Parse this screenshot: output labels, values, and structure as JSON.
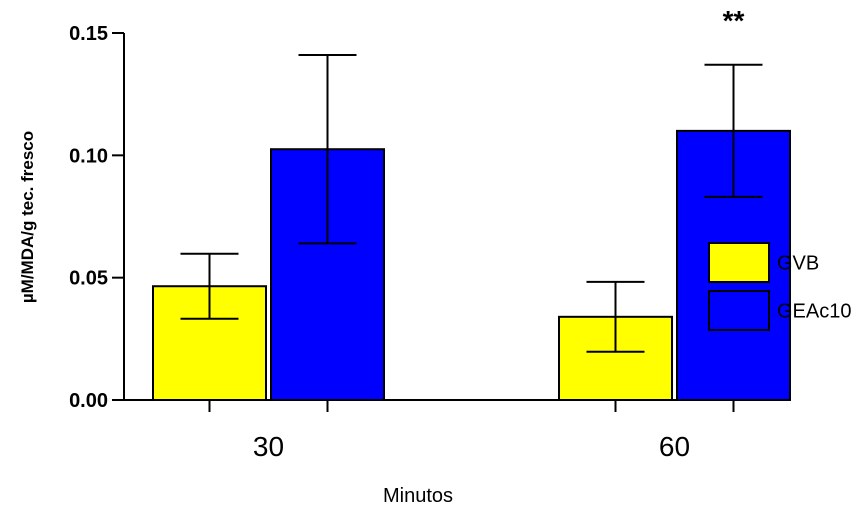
{
  "chart_data": {
    "type": "bar",
    "categories": [
      "30",
      "60"
    ],
    "series": [
      {
        "name": "GVB",
        "values": [
          0.0465,
          0.034
        ],
        "errors": [
          0.0133,
          0.0143
        ],
        "color": "#ffff00"
      },
      {
        "name": "GEAc10",
        "values": [
          0.1025,
          0.11
        ],
        "errors": [
          0.0385,
          0.027
        ],
        "color": "#0000ff"
      }
    ],
    "xlabel": "Minutos",
    "ylabel": "µM/MDA/g tec. fresco",
    "ylim": [
      0,
      0.15
    ],
    "yticks": [
      0.0,
      0.05,
      0.1,
      0.15
    ],
    "ytick_labels": [
      "0.00",
      "0.05",
      "0.10",
      "0.15"
    ],
    "annotations": [
      {
        "text": "**",
        "category": "60",
        "series": "GEAc10"
      }
    ],
    "legend": "right",
    "grid": false
  }
}
